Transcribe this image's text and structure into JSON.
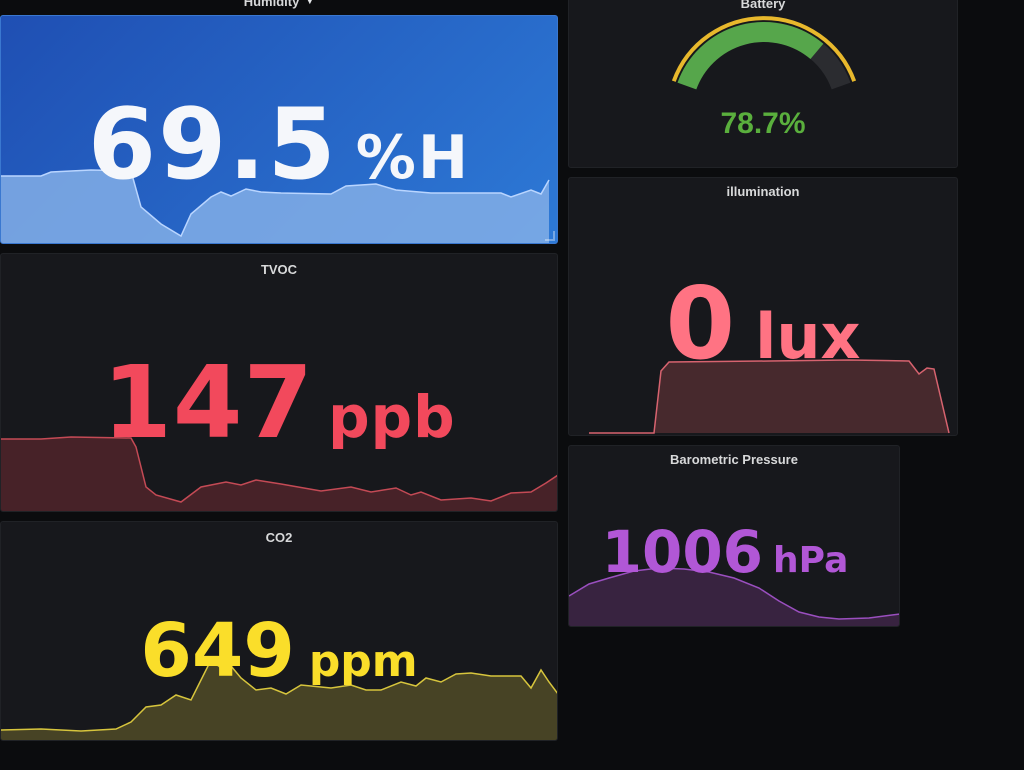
{
  "panels": {
    "humidity": {
      "title": "Humidity",
      "value": "69.5",
      "unit": "%H",
      "color": "#f5f7fb",
      "spark_color": "#8ab8ff"
    },
    "tvoc": {
      "title": "TVOC",
      "value": "147",
      "unit": "ppb",
      "color": "#f2495c"
    },
    "co2": {
      "title": "CO2",
      "value": "649",
      "unit": "ppm",
      "color": "#fade2a"
    },
    "battery": {
      "title": "Battery",
      "value": "78.7%",
      "gauge_fraction": 0.787,
      "color": "#5aaf3d",
      "threshold_color": "#e8b82c"
    },
    "illumination": {
      "title": "illumination",
      "value": "0",
      "unit": "lux",
      "color": "#ff7383"
    },
    "barometric_pressure": {
      "title": "Barometric Pressure",
      "value": "1006",
      "unit": "hPa",
      "color": "#b157d6"
    }
  }
}
